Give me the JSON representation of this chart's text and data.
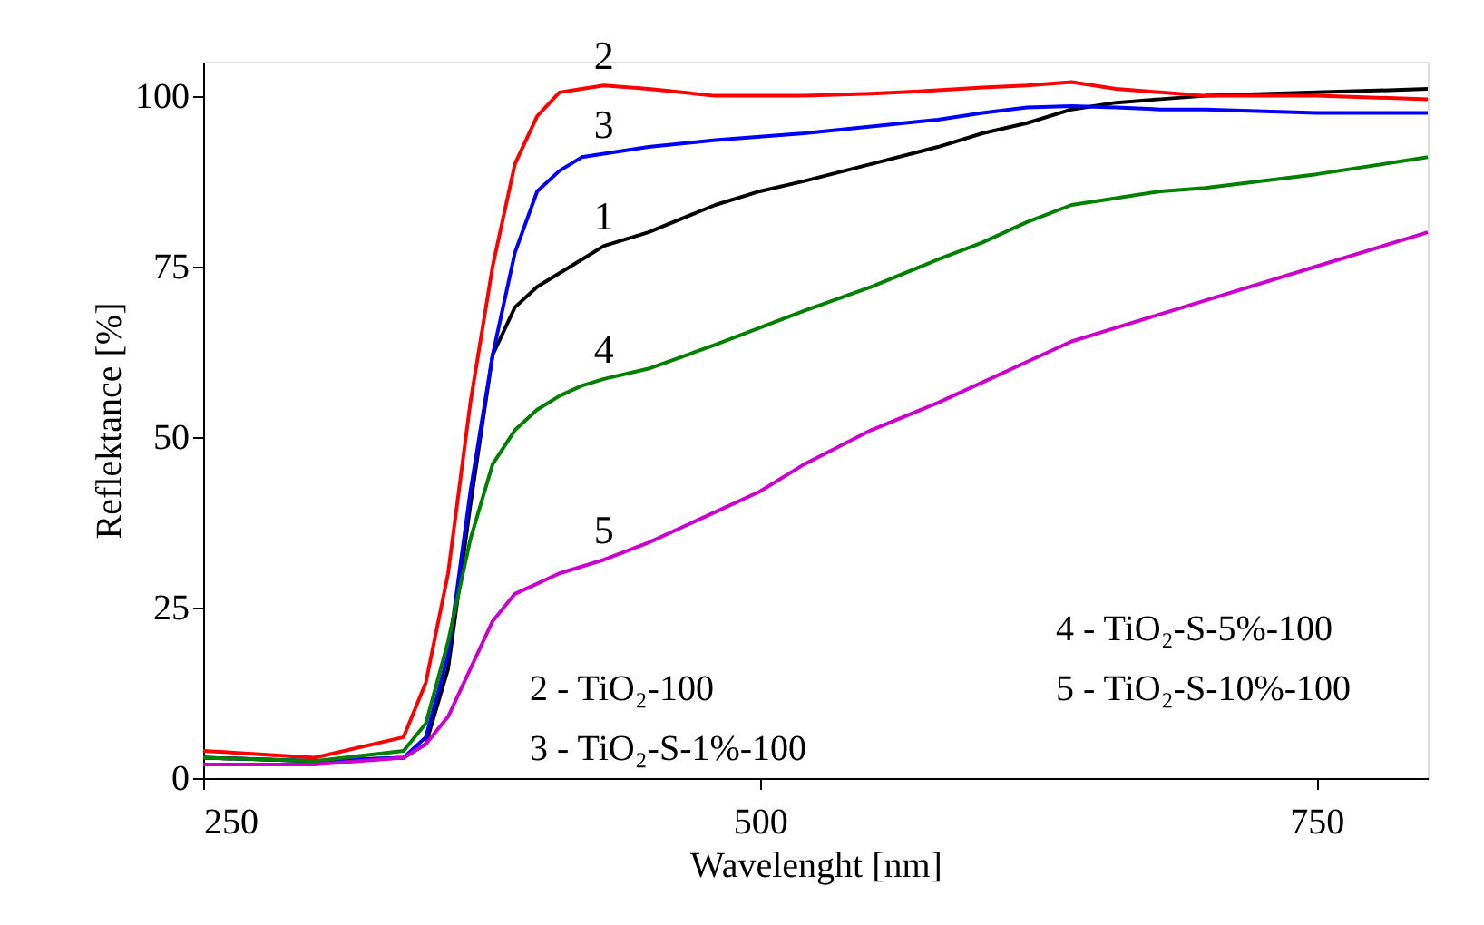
{
  "chart_data": {
    "type": "line",
    "xlabel": "Wavelenght [nm]",
    "ylabel": "Reflektance  [%]",
    "x": [
      250,
      300,
      340,
      350,
      360,
      370,
      380,
      390,
      400,
      410,
      420,
      430,
      450,
      480,
      500,
      520,
      550,
      580,
      600,
      620,
      640,
      660,
      680,
      700,
      750,
      800
    ],
    "series": [
      {
        "name": "1",
        "color": "#000000",
        "values": [
          3,
          2.5,
          3,
          5,
          16,
          40,
          62,
          69,
          72,
          74,
          76,
          78,
          80,
          84,
          86,
          87.5,
          90,
          92.5,
          94.5,
          96,
          98,
          99,
          99.5,
          100,
          100.5,
          101
        ]
      },
      {
        "name": "2",
        "color": "#ff0000",
        "values": [
          4,
          3,
          6,
          14,
          30,
          55,
          75,
          90,
          97,
          100.5,
          101,
          101.5,
          101,
          100,
          100,
          100,
          100.3,
          100.8,
          101.2,
          101.5,
          102,
          101,
          100.5,
          100,
          100,
          99.5
        ]
      },
      {
        "name": "3",
        "color": "#0000ff",
        "values": [
          3,
          2.5,
          3,
          6,
          18,
          42,
          62,
          77,
          86,
          89,
          91,
          91.5,
          92.5,
          93.5,
          94,
          94.5,
          95.5,
          96.5,
          97.5,
          98.3,
          98.5,
          98.3,
          98,
          98,
          97.5,
          97.5
        ]
      },
      {
        "name": "4",
        "color": "#008000",
        "values": [
          3,
          2.5,
          4,
          8,
          20,
          35,
          46,
          51,
          54,
          56,
          57.5,
          58.5,
          60,
          63.5,
          66,
          68.5,
          72,
          76,
          78.5,
          81.5,
          84,
          85,
          86,
          86.5,
          88.5,
          91
        ]
      },
      {
        "name": "5",
        "color": "#cc00cc",
        "values": [
          2,
          2,
          3,
          5,
          9,
          16,
          23,
          27,
          28.5,
          30,
          31,
          32,
          34.5,
          39,
          42,
          46,
          51,
          55,
          58,
          61,
          64,
          66,
          68,
          70,
          75,
          80
        ]
      }
    ],
    "annotations": [
      "2 - TiO₂-100",
      "3 - TiO₂-S-1%-100",
      "4 - TiO₂-S-5%-100",
      "5 - TiO₂-S-10%-100"
    ],
    "xlim": [
      250,
      800
    ],
    "ylim": [
      0,
      105
    ],
    "xticks": [
      250,
      500,
      750
    ],
    "yticks": [
      0,
      25,
      50,
      75,
      100
    ],
    "grid": false,
    "legend": false,
    "marker": "none",
    "line_style": "solid"
  }
}
